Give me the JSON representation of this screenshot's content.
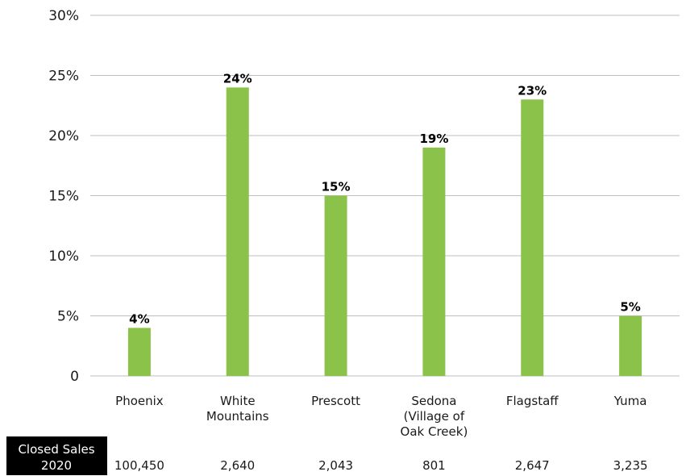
{
  "chart_data": {
    "type": "bar",
    "categories": [
      [
        "Phoenix"
      ],
      [
        "White",
        "Mountains"
      ],
      [
        "Prescott"
      ],
      [
        "Sedona",
        "(Village of",
        "Oak Creek)"
      ],
      [
        "Flagstaff"
      ],
      [
        "Yuma"
      ]
    ],
    "values": [
      4,
      24,
      15,
      19,
      23,
      5
    ],
    "data_labels": [
      "4%",
      "24%",
      "15%",
      "19%",
      "23%",
      "5%"
    ],
    "ylim": [
      0,
      30
    ],
    "yticks": [
      0,
      5,
      10,
      15,
      20,
      25,
      30
    ],
    "ytick_labels": [
      "0",
      "5%",
      "10%",
      "15%",
      "20%",
      "25%",
      "30%"
    ],
    "grid": true,
    "bar_color": "#8bc34a",
    "title": "",
    "xlabel": "",
    "ylabel": ""
  },
  "footer": {
    "label_lines": [
      "Closed Sales",
      "2020"
    ],
    "label_bg": "#000000",
    "values": [
      "100,450",
      "2,640",
      "2,043",
      "801",
      "2,647",
      "3,235"
    ]
  }
}
